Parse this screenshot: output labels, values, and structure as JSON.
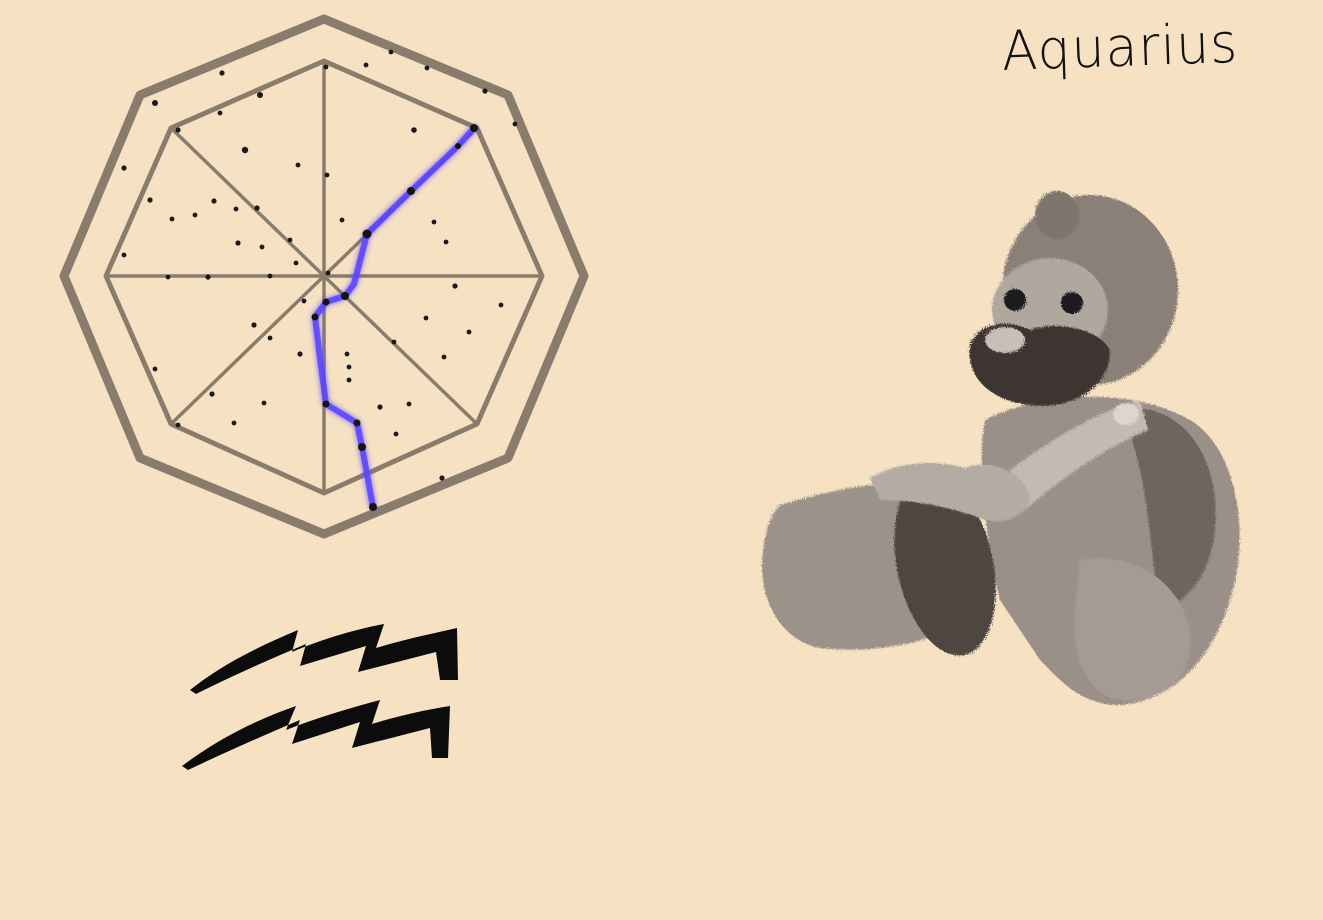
{
  "card": {
    "title": "Aquarius"
  },
  "palette": {
    "background": "#f6e2c3",
    "frame": "#8a7c6c",
    "star": "#1a1a1a",
    "constellation_line": "#5a45ff",
    "glyph": "#0c0c0c",
    "figure_mid": "#9a9088",
    "figure_dark": "#4e4640"
  },
  "icons": {
    "star_chart": "octagonal-star-chart-icon",
    "zodiac_sign": "aquarius-zodiac-glyph-icon",
    "figure": "aquarius-water-bearer-figure-icon"
  }
}
